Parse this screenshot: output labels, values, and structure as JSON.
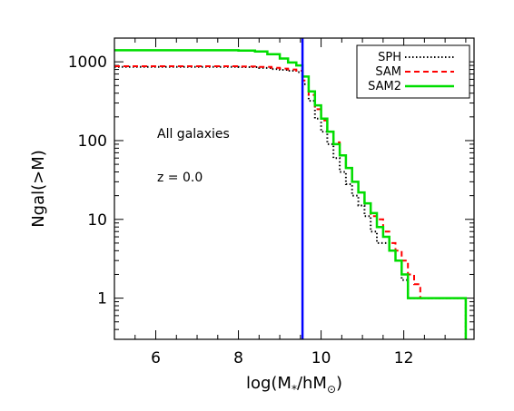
{
  "chart_data": {
    "type": "line",
    "xlabel": "log(M*/hM⊙)",
    "xlabel_parts": {
      "base": "log(M",
      "sub": "*",
      "mid": "/hM",
      "sub2": "⊙",
      "end": ")"
    },
    "ylabel": "Ngal(>M)",
    "xlim": [
      5,
      13.7
    ],
    "ylim": [
      0.3,
      2000
    ],
    "yscale": "log",
    "xticks": [
      6,
      8,
      10,
      12
    ],
    "xtick_labels": [
      "6",
      "8",
      "10",
      "12"
    ],
    "yticks": [
      1,
      10,
      100,
      1000
    ],
    "ytick_labels": [
      "1",
      "10",
      "100",
      "1000"
    ],
    "grid": false,
    "legend_position": "top-right",
    "annotations": [
      "All galaxies",
      "z = 0.0"
    ],
    "vline": {
      "x": 9.55,
      "color": "#0000ff"
    },
    "series": [
      {
        "name": "SPH",
        "color": "#000000",
        "style": "dotted",
        "x": [
          5.0,
          7.5,
          8.0,
          8.5,
          8.8,
          9.0,
          9.2,
          9.4,
          9.55,
          9.7,
          9.85,
          10.0,
          10.15,
          10.3,
          10.45,
          10.6,
          10.75,
          10.9,
          11.05,
          11.2,
          11.35,
          11.5,
          11.65,
          11.8,
          11.95,
          12.1,
          13.2,
          13.5
        ],
        "y": [
          860,
          860,
          855,
          835,
          810,
          790,
          770,
          740,
          520,
          320,
          190,
          130,
          90,
          60,
          40,
          28,
          20,
          15,
          11,
          7,
          5,
          5,
          4,
          3,
          1.7,
          1,
          1,
          0.3
        ]
      },
      {
        "name": "SAM",
        "color": "#ff0000",
        "style": "dashed",
        "x": [
          5.0,
          7.5,
          8.0,
          8.5,
          8.8,
          9.0,
          9.2,
          9.4,
          9.55,
          9.7,
          9.85,
          10.0,
          10.15,
          10.3,
          10.45,
          10.6,
          10.75,
          10.9,
          11.05,
          11.2,
          11.35,
          11.5,
          11.65,
          11.8,
          11.95,
          12.1,
          12.25,
          12.4,
          13.3,
          13.5
        ],
        "y": [
          880,
          880,
          875,
          860,
          840,
          820,
          800,
          770,
          580,
          380,
          250,
          180,
          130,
          95,
          65,
          45,
          30,
          22,
          16,
          11,
          10,
          7,
          5,
          4,
          3,
          2,
          1.5,
          1,
          1,
          0.3
        ]
      },
      {
        "name": "SAM2",
        "color": "#00dd00",
        "style": "solid",
        "x": [
          5.0,
          8.0,
          8.4,
          8.7,
          9.0,
          9.2,
          9.4,
          9.55,
          9.7,
          9.85,
          10.0,
          10.15,
          10.3,
          10.45,
          10.6,
          10.75,
          10.9,
          11.05,
          11.2,
          11.35,
          11.5,
          11.65,
          11.8,
          11.95,
          12.1,
          13.1,
          13.5
        ],
        "y": [
          1400,
          1390,
          1350,
          1250,
          1100,
          980,
          900,
          650,
          420,
          280,
          190,
          130,
          90,
          65,
          45,
          30,
          22,
          16,
          12,
          8,
          6,
          4,
          3,
          2,
          1,
          1,
          0.3
        ]
      }
    ]
  }
}
